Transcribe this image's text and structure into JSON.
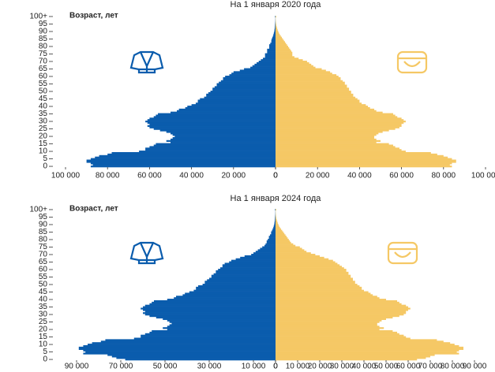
{
  "chart_data": [
    {
      "type": "pyramid",
      "title": "На 1 января 2020 года",
      "y_label": "Возраст, лет",
      "ylim": [
        0,
        100
      ],
      "yticks": [
        0,
        5,
        10,
        15,
        20,
        25,
        30,
        35,
        40,
        45,
        50,
        55,
        60,
        65,
        70,
        75,
        80,
        85,
        90,
        95,
        {
          "value": 100,
          "label": "100+"
        }
      ],
      "xlim": [
        0,
        100000
      ],
      "xticks_left": [
        {
          "value": 100000,
          "label": "100 000"
        },
        {
          "value": 80000,
          "label": "80 000"
        },
        {
          "value": 60000,
          "label": "60 000"
        },
        {
          "value": 40000,
          "label": "40 000"
        },
        {
          "value": 20000,
          "label": "20 000"
        },
        0
      ],
      "xticks_right": [
        0,
        {
          "value": 20000,
          "label": "20 000"
        },
        {
          "value": 40000,
          "label": "40 000"
        },
        {
          "value": 60000,
          "label": "60 000"
        },
        {
          "value": 80000,
          "label": "80 000"
        },
        {
          "value": 100000,
          "label": "100 000"
        }
      ],
      "series": [
        {
          "side": "left",
          "color": "#0a5cad",
          "values": [
            88000,
            87000,
            88000,
            90000,
            90000,
            88000,
            86000,
            84000,
            80000,
            78000,
            65000,
            62000,
            62000,
            60000,
            58000,
            57000,
            50000,
            52000,
            50000,
            49000,
            48000,
            49000,
            50000,
            52000,
            55000,
            58000,
            60000,
            61000,
            60000,
            61000,
            62000,
            61000,
            60000,
            58000,
            57000,
            56000,
            50000,
            47000,
            46000,
            43000,
            42000,
            40000,
            38000,
            37000,
            37000,
            36000,
            34000,
            33000,
            33000,
            32000,
            31000,
            30000,
            30000,
            29000,
            28000,
            28000,
            27000,
            26000,
            25000,
            25000,
            24000,
            22000,
            21000,
            20000,
            17000,
            15000,
            12000,
            11000,
            10000,
            9000,
            8000,
            7000,
            6000,
            5000,
            5000,
            5000,
            4000,
            4000,
            4000,
            3000,
            3000,
            3000,
            2500,
            2000,
            2000,
            1800,
            1500,
            1200,
            1000,
            800,
            600,
            500,
            400,
            300,
            250,
            200,
            150,
            100,
            80,
            60,
            200
          ]
        },
        {
          "side": "right",
          "color": "#f5c865",
          "values": [
            84000,
            83000,
            84000,
            86000,
            86000,
            84000,
            82000,
            80000,
            77000,
            74000,
            62000,
            60000,
            59000,
            57000,
            56000,
            54000,
            48000,
            50000,
            48000,
            47000,
            47000,
            48000,
            49000,
            51000,
            54000,
            57000,
            59000,
            60000,
            60000,
            61000,
            62000,
            61000,
            60000,
            58000,
            57000,
            56000,
            51000,
            48000,
            47000,
            45000,
            44000,
            43000,
            41000,
            40000,
            40000,
            39000,
            38000,
            37000,
            37000,
            36000,
            36000,
            35000,
            35000,
            34000,
            34000,
            33000,
            33000,
            32000,
            31000,
            31000,
            30000,
            29000,
            27000,
            26000,
            24000,
            22000,
            19000,
            18000,
            17000,
            16000,
            15000,
            13000,
            11000,
            9000,
            8000,
            8000,
            8000,
            7500,
            7000,
            6500,
            6000,
            5500,
            5000,
            4500,
            4000,
            3500,
            3000,
            2500,
            2000,
            1600,
            1300,
            1000,
            800,
            600,
            400,
            300,
            200,
            150,
            100,
            80,
            300
          ]
        }
      ]
    },
    {
      "type": "pyramid",
      "title": "На 1 января 2024 года",
      "y_label": "Возраст, лет",
      "ylim": [
        0,
        100
      ],
      "yticks": [
        0,
        5,
        10,
        15,
        20,
        25,
        30,
        35,
        40,
        45,
        50,
        55,
        60,
        65,
        70,
        75,
        80,
        85,
        90,
        95,
        {
          "value": 100,
          "label": "100+"
        }
      ],
      "xlim": [
        0,
        95000
      ],
      "xticks_left": [
        {
          "value": 90000,
          "label": "90 000"
        },
        {
          "value": 70000,
          "label": "70 000"
        },
        {
          "value": 50000,
          "label": "50 000"
        },
        {
          "value": 30000,
          "label": "30 000"
        },
        {
          "value": 10000,
          "label": "10 000"
        },
        0
      ],
      "xticks_right": [
        0,
        {
          "value": 10000,
          "label": "10 000"
        },
        {
          "value": 20000,
          "label": "20 000"
        },
        {
          "value": 30000,
          "label": "30 000"
        },
        {
          "value": 40000,
          "label": "40 000"
        },
        {
          "value": 50000,
          "label": "50 000"
        },
        {
          "value": 60000,
          "label": "60 000"
        },
        {
          "value": 70000,
          "label": "70 000"
        },
        {
          "value": 80000,
          "label": "80 000"
        },
        {
          "value": 90000,
          "label": "90 000"
        }
      ],
      "series": [
        {
          "side": "left",
          "color": "#0a5cad",
          "values": [
            68000,
            72000,
            74000,
            76000,
            87000,
            86000,
            87000,
            89000,
            89000,
            87000,
            85000,
            83000,
            79000,
            77000,
            64000,
            61000,
            61000,
            59000,
            57000,
            56000,
            49000,
            51000,
            49000,
            48000,
            47000,
            48000,
            49000,
            51000,
            54000,
            57000,
            59000,
            60000,
            59000,
            60000,
            61000,
            60000,
            59000,
            57000,
            56000,
            55000,
            49000,
            46000,
            45000,
            42000,
            41000,
            39000,
            37000,
            36000,
            36000,
            35000,
            33000,
            32000,
            32000,
            31000,
            30000,
            29000,
            29000,
            28000,
            27000,
            27000,
            26000,
            25000,
            24000,
            24000,
            23000,
            21000,
            20000,
            18000,
            16000,
            14000,
            11000,
            10000,
            9000,
            8000,
            7000,
            6000,
            5000,
            4500,
            4000,
            4000,
            3500,
            3000,
            3000,
            2500,
            2000,
            2000,
            1600,
            1300,
            1000,
            800,
            600,
            500,
            400,
            300,
            250,
            200,
            150,
            100,
            80,
            60,
            200
          ]
        },
        {
          "side": "right",
          "color": "#f5c865",
          "values": [
            64000,
            68000,
            70000,
            72000,
            83000,
            82000,
            83000,
            85000,
            85000,
            83000,
            81000,
            79000,
            76000,
            73000,
            61000,
            59000,
            58000,
            56000,
            55000,
            53000,
            47000,
            49000,
            47000,
            46000,
            46000,
            47000,
            48000,
            50000,
            53000,
            56000,
            58000,
            59000,
            59000,
            60000,
            61000,
            60000,
            59000,
            57000,
            56000,
            55000,
            50000,
            47000,
            46000,
            44000,
            43000,
            42000,
            40000,
            39000,
            39000,
            38000,
            37000,
            36000,
            36000,
            35000,
            35000,
            34000,
            34000,
            33000,
            33000,
            32000,
            32000,
            31000,
            30000,
            29000,
            28000,
            27000,
            26000,
            24000,
            22000,
            20000,
            18000,
            16000,
            14000,
            13000,
            12000,
            11000,
            9000,
            8000,
            7000,
            6500,
            6000,
            5500,
            5000,
            4500,
            4000,
            3500,
            3000,
            2500,
            2000,
            1600,
            1300,
            1000,
            800,
            600,
            400,
            300,
            200,
            150,
            100,
            80,
            300
          ]
        }
      ]
    }
  ]
}
